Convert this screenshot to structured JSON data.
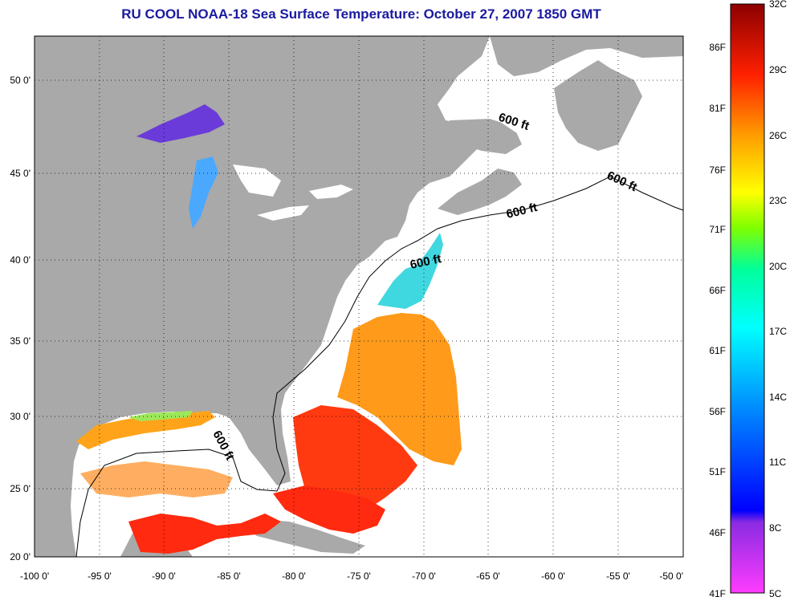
{
  "title": "RU COOL  NOAA-18  Sea Surface Temperature:  October 27, 2007 1850 GMT",
  "colors": {
    "land": "#a9a9a9",
    "no_data": "#ffffff",
    "title": "#1a1aa0"
  },
  "axes": {
    "lat_ticks": [
      "50 0'",
      "45 0'",
      "40 0'",
      "35 0'",
      "30 0'",
      "25 0'",
      "20 0'"
    ],
    "lon_ticks": [
      "-100 0'",
      "-95 0'",
      "-90 0'",
      "-85 0'",
      "-80 0'",
      "-75 0'",
      "-70 0'",
      "-65 0'",
      "-60 0'",
      "-55 0'",
      "-50 0'"
    ]
  },
  "map_extent": {
    "lon_min": -100,
    "lon_max": -50,
    "lat_min": 20,
    "lat_max": 52.5
  },
  "contour_labels": [
    "600 ft",
    "600 ft",
    "600 ft",
    "600 ft",
    "600 ft"
  ],
  "legend": {
    "celsius": [
      "32C",
      "29C",
      "26C",
      "23C",
      "20C",
      "17C",
      "14C",
      "11C",
      "8C",
      "5C"
    ],
    "fahrenheit": [
      "86F",
      "81F",
      "76F",
      "71F",
      "66F",
      "61F",
      "56F",
      "51F",
      "46F",
      "41F"
    ],
    "range_c": [
      5,
      32
    ]
  }
}
